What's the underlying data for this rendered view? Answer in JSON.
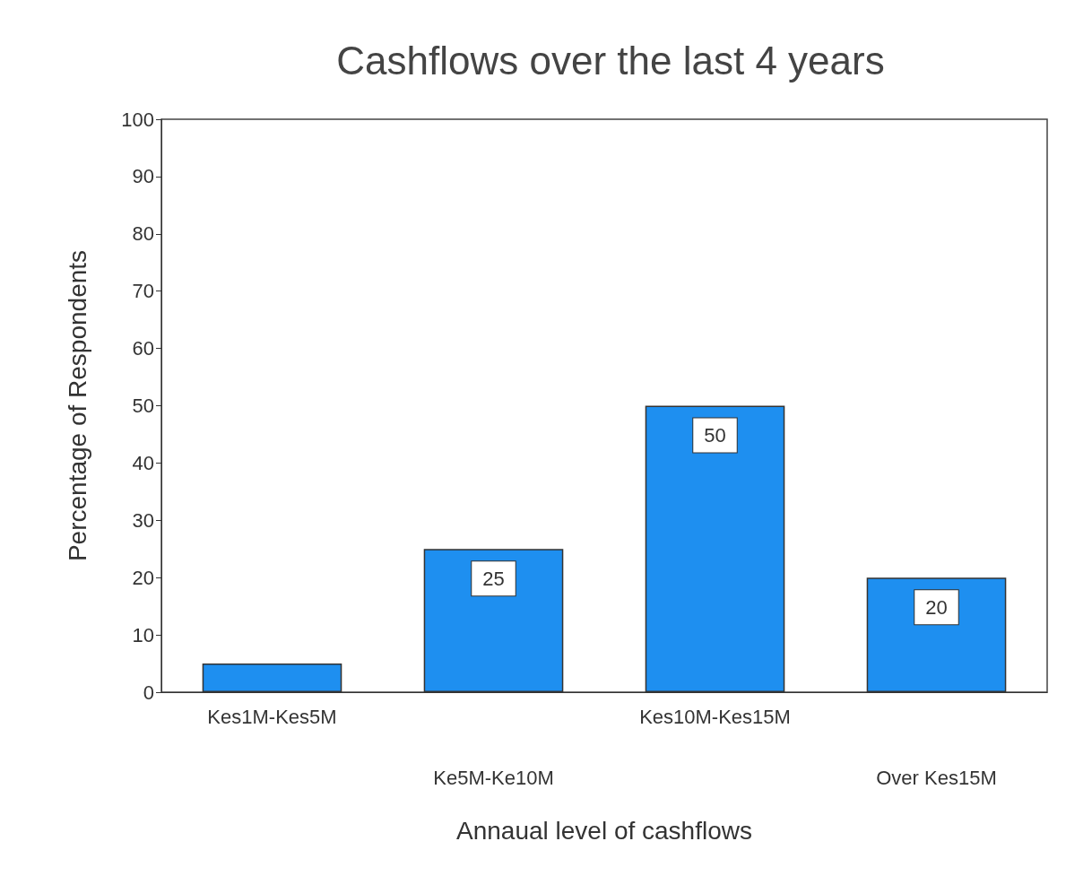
{
  "chart_data": {
    "type": "bar",
    "title": "Cashflows over the last 4 years",
    "xlabel": "Annaual level of cashflows",
    "ylabel": "Percentage of Respondents",
    "categories": [
      "Kes1M-Kes5M",
      "Ke5M-Ke10M",
      "Kes10M-Kes15M",
      "Over Kes15M"
    ],
    "values": [
      5,
      25,
      50,
      20
    ],
    "value_labels": [
      null,
      "25",
      "50",
      "20"
    ],
    "color": "#1e8ff0",
    "ylim": [
      0,
      100
    ],
    "yticks": [
      0,
      10,
      20,
      30,
      40,
      50,
      60,
      70,
      80,
      90,
      100
    ],
    "grid": false
  }
}
